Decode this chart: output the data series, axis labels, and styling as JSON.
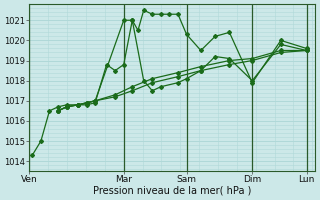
{
  "title": "",
  "xlabel": "Pression niveau de la mer( hPa )",
  "ylabel": "",
  "bg_color": "#cce8e8",
  "grid_color": "#b0d8d8",
  "line_color": "#1a6b1a",
  "ylim": [
    1013.5,
    1021.8
  ],
  "yticks": [
    1014,
    1015,
    1016,
    1017,
    1018,
    1019,
    1020,
    1021
  ],
  "day_labels": [
    "Ven",
    "Mar",
    "Sam",
    "Dim",
    "Lun"
  ],
  "day_positions": [
    0.0,
    0.33,
    0.55,
    0.78,
    0.97
  ],
  "series": [
    [
      0.01,
      1014.3,
      0.04,
      1015.0,
      0.07,
      1016.5,
      0.1,
      1016.7,
      0.13,
      1016.8,
      0.17,
      1016.8,
      0.2,
      1016.9,
      0.23,
      1017.0,
      0.33,
      1021.0,
      0.36,
      1021.0,
      0.38,
      1020.5,
      0.4,
      1021.5,
      0.43,
      1021.3,
      0.46,
      1021.3,
      0.49,
      1021.3,
      0.52,
      1021.3,
      0.55,
      1020.3,
      0.6,
      1019.5,
      0.65,
      1020.2,
      0.7,
      1020.4,
      0.78,
      1017.9,
      0.88,
      1020.0,
      0.97,
      1019.6
    ],
    [
      0.1,
      1016.5,
      0.13,
      1016.7,
      0.17,
      1016.8,
      0.2,
      1016.8,
      0.23,
      1016.9,
      0.27,
      1018.8,
      0.3,
      1018.5,
      0.33,
      1018.8,
      0.36,
      1021.0,
      0.4,
      1018.0,
      0.43,
      1017.5,
      0.46,
      1017.7,
      0.52,
      1017.9,
      0.55,
      1018.1,
      0.6,
      1018.5,
      0.65,
      1019.2,
      0.7,
      1019.1,
      0.78,
      1018.0,
      0.88,
      1019.8,
      0.97,
      1019.5
    ],
    [
      0.1,
      1016.5,
      0.13,
      1016.7,
      0.17,
      1016.8,
      0.2,
      1016.9,
      0.23,
      1017.0,
      0.3,
      1017.3,
      0.36,
      1017.7,
      0.43,
      1018.1,
      0.52,
      1018.4,
      0.6,
      1018.7,
      0.7,
      1019.0,
      0.78,
      1019.1,
      0.88,
      1019.5,
      0.97,
      1019.5
    ],
    [
      0.1,
      1016.5,
      0.13,
      1016.7,
      0.17,
      1016.8,
      0.2,
      1016.9,
      0.23,
      1017.0,
      0.3,
      1017.2,
      0.36,
      1017.5,
      0.43,
      1017.9,
      0.52,
      1018.2,
      0.6,
      1018.5,
      0.7,
      1018.8,
      0.78,
      1019.0,
      0.88,
      1019.4,
      0.97,
      1019.5
    ]
  ],
  "figsize": [
    3.2,
    2.0
  ],
  "dpi": 100
}
